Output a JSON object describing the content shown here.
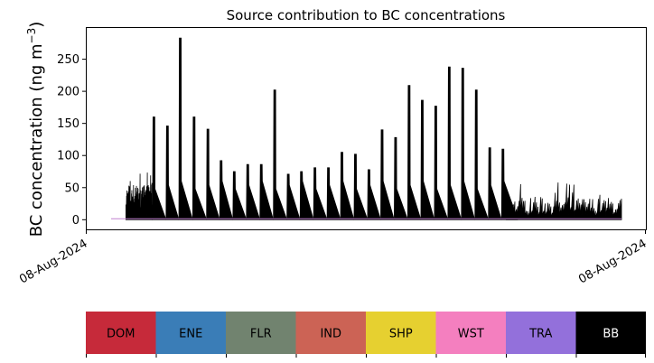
{
  "chart_data": {
    "type": "area",
    "title": "Source contribution to BC concentrations",
    "ylabel_main": "BC concentration (ng m",
    "ylabel_sup": "−3",
    "ylabel_end": ")",
    "xlabel": "",
    "ylim": [
      -15,
      300
    ],
    "yticks": [
      0,
      50,
      100,
      150,
      200,
      250
    ],
    "x_tick_labels": [
      "08-Aug-2024",
      "08-Aug-2024"
    ],
    "grid": false,
    "series_note": "BB dominates; other sources near zero",
    "peaks": [
      {
        "pos": 0.13,
        "peak": 160
      },
      {
        "pos": 0.171,
        "peak": 146
      },
      {
        "pos": 0.21,
        "peak": 283
      },
      {
        "pos": 0.252,
        "peak": 160
      },
      {
        "pos": 0.294,
        "peak": 141
      },
      {
        "pos": 0.334,
        "peak": 92
      },
      {
        "pos": 0.374,
        "peak": 75
      },
      {
        "pos": 0.415,
        "peak": 86
      },
      {
        "pos": 0.456,
        "peak": 86
      },
      {
        "pos": 0.497,
        "peak": 202
      },
      {
        "pos": 0.538,
        "peak": 71
      },
      {
        "pos": 0.578,
        "peak": 75
      },
      {
        "pos": 0.619,
        "peak": 81
      },
      {
        "pos": 0.66,
        "peak": 81
      },
      {
        "pos": 0.701,
        "peak": 105
      },
      {
        "pos": 0.742,
        "peak": 102
      },
      {
        "pos": 0.783,
        "peak": 78
      },
      {
        "pos": 0.823,
        "peak": 140
      },
      {
        "pos": 0.864,
        "peak": 128
      },
      {
        "pos": 0.905,
        "peak": 209
      },
      {
        "pos": 0.945,
        "peak": 186
      },
      {
        "pos": 0.986,
        "peak": 177
      },
      {
        "pos": 1.027,
        "peak": 238
      },
      {
        "pos": 1.068,
        "peak": 236
      },
      {
        "pos": 1.109,
        "peak": 202
      },
      {
        "pos": 1.15,
        "peak": 112
      },
      {
        "pos": 1.19,
        "peak": 110
      }
    ],
    "noise_left": {
      "from": 0.045,
      "to": 0.125,
      "level": 55,
      "max": 78
    },
    "noise_right": {
      "from": 1.2,
      "to": 1.55,
      "level": 35,
      "max": 68
    }
  },
  "legend": {
    "items": [
      {
        "label": "DOM",
        "color": "#c62a3a",
        "text_color": "#000000"
      },
      {
        "label": "ENE",
        "color": "#3a7db7",
        "text_color": "#000000"
      },
      {
        "label": "FLR",
        "color": "#71836f",
        "text_color": "#000000"
      },
      {
        "label": "IND",
        "color": "#cc6355",
        "text_color": "#000000"
      },
      {
        "label": "SHP",
        "color": "#e6d030",
        "text_color": "#000000"
      },
      {
        "label": "WST",
        "color": "#f47fbf",
        "text_color": "#000000"
      },
      {
        "label": "TRA",
        "color": "#9370db",
        "text_color": "#000000"
      },
      {
        "label": "BB",
        "color": "#000000",
        "text_color": "#ffffff"
      }
    ]
  }
}
